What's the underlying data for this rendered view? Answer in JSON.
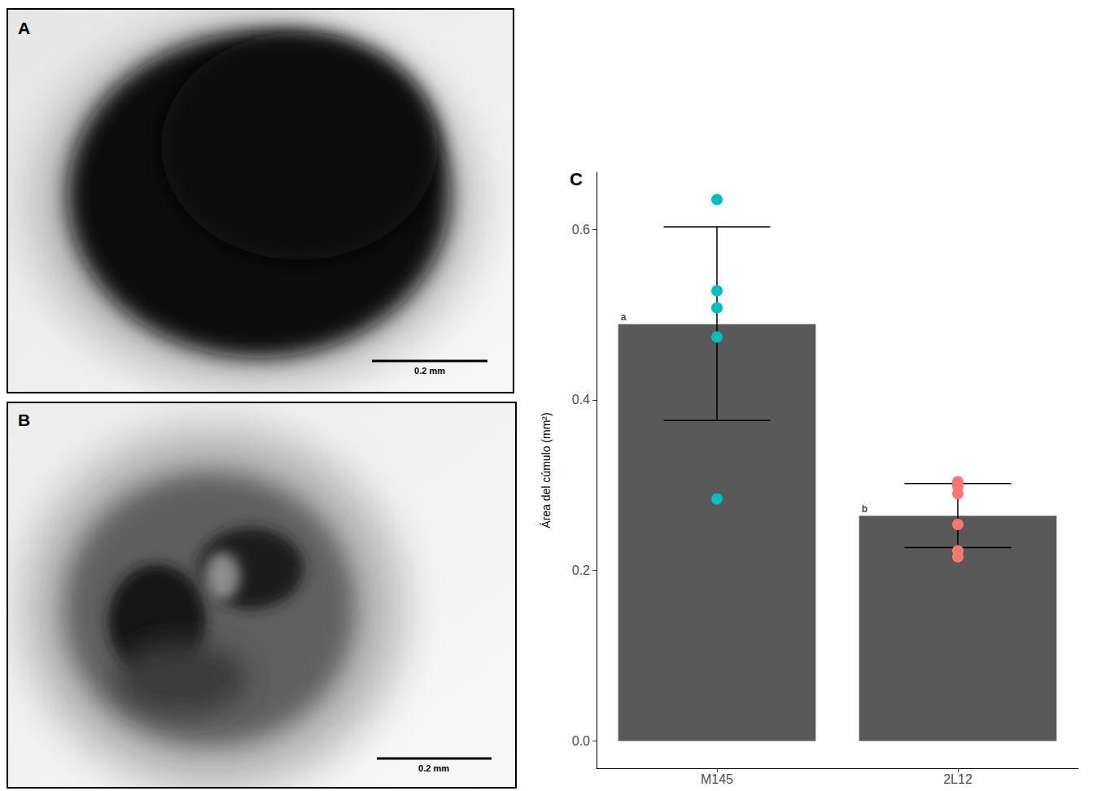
{
  "chart_data": {
    "type": "bar",
    "panel_label": "C",
    "y_label": "Área del cúmulo (mm²)",
    "categories": [
      "M145",
      "2L12"
    ],
    "values": [
      0.489,
      0.264
    ],
    "color": "#595959",
    "error_low": [
      0.376,
      0.227
    ],
    "error_high": [
      0.603,
      0.302
    ],
    "group_letters": [
      "a",
      "b"
    ],
    "points": [
      {
        "category": "M145",
        "color": "#00BFC4",
        "values": [
          0.635,
          0.528,
          0.508,
          0.474,
          0.284
        ]
      },
      {
        "category": "2L12",
        "color": "#F8766D",
        "values": [
          0.304,
          0.299,
          0.29,
          0.254,
          0.223,
          0.216
        ]
      }
    ],
    "ylim": [
      -0.032,
      0.667
    ],
    "yticks": [
      {
        "value": 0,
        "label": "0.0"
      },
      0.2,
      0.4,
      0.6
    ],
    "grid": false
  },
  "images": [
    {
      "label": "A",
      "scale_bar": "0.2 mm"
    },
    {
      "label": "B",
      "scale_bar": "0.2 mm"
    }
  ]
}
